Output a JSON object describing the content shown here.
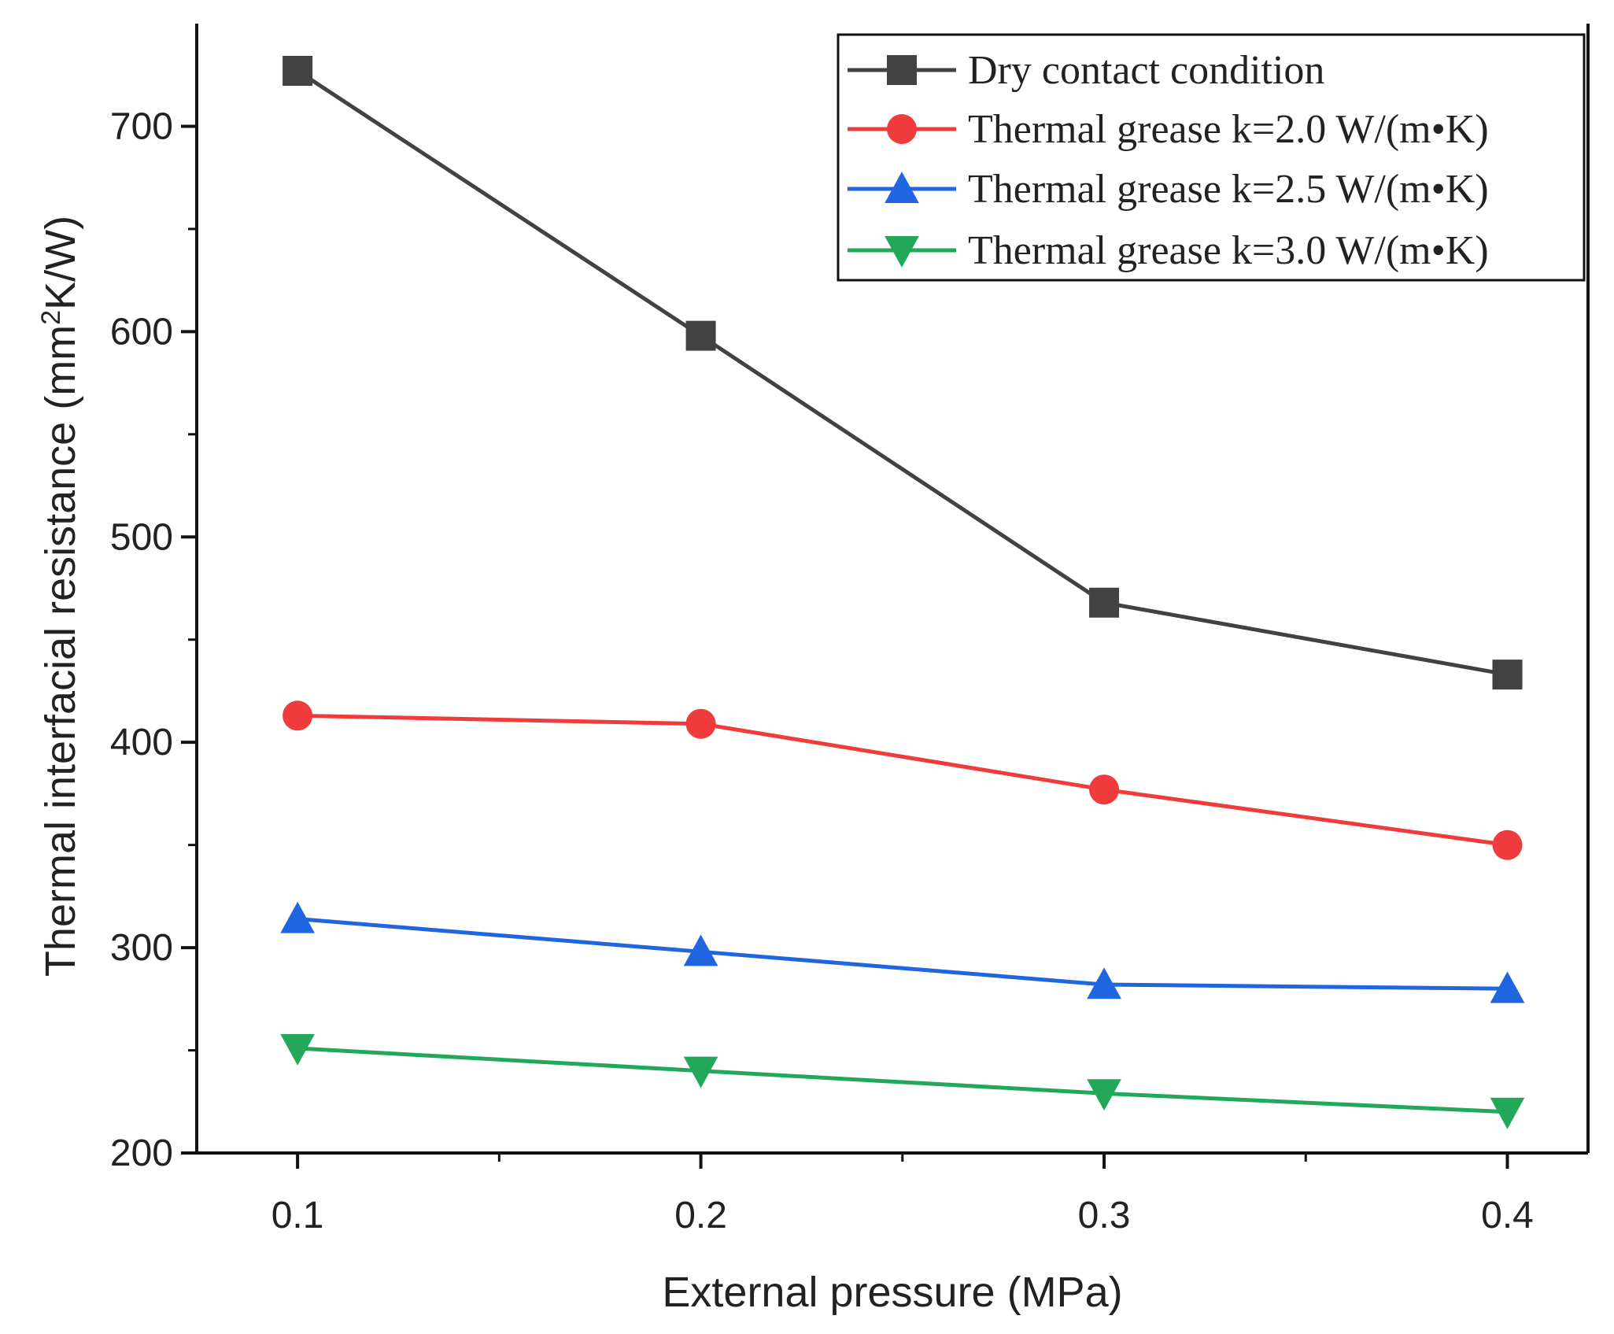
{
  "chart_data": {
    "type": "line",
    "title": "",
    "xlabel": "External pressure (MPa)",
    "ylabel_main": "Thermal interfacial resistance (mm",
    "ylabel_sup": "2",
    "ylabel_tail": "K/W)",
    "x": [
      0.1,
      0.2,
      0.3,
      0.4
    ],
    "x_tick_labels": [
      "0.1",
      "0.2",
      "0.3",
      "0.4"
    ],
    "xlim": [
      0.075,
      0.42
    ],
    "ylim": [
      200,
      750
    ],
    "y_ticks_major": [
      200,
      300,
      400,
      500,
      600,
      700
    ],
    "y_ticks_minor": [
      250,
      350,
      450,
      550,
      650
    ],
    "y_tick_labels": [
      "200",
      "300",
      "400",
      "500",
      "600",
      "700"
    ],
    "grid": false,
    "legend_position": "top-right",
    "series": [
      {
        "name": "Dry contact condition",
        "color": "#424242",
        "marker": "square",
        "values": [
          727,
          598,
          468,
          433
        ]
      },
      {
        "name": "Thermal grease k=2.0 W/(m•K)",
        "color": "#ef3b3b",
        "marker": "circle",
        "values": [
          413,
          409,
          377,
          350
        ]
      },
      {
        "name": "Thermal grease k=2.5 W/(m•K)",
        "color": "#1f66e0",
        "marker": "triangle-up",
        "values": [
          314,
          298,
          282,
          280
        ]
      },
      {
        "name": "Thermal grease k=3.0 W/(m•K)",
        "color": "#23a85a",
        "marker": "triangle-down",
        "values": [
          251,
          240,
          229,
          220
        ]
      }
    ]
  }
}
